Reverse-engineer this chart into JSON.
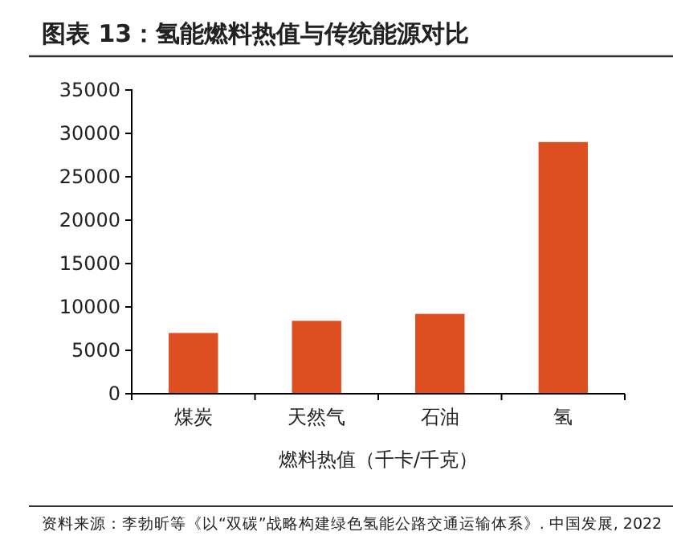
{
  "chart_data": {
    "type": "bar",
    "title": "图表 13：氢能燃料热值与传统能源对比",
    "xlabel": "燃料热值（千卡/千克）",
    "categories": [
      "煤炭",
      "天然气",
      "石油",
      "氢"
    ],
    "values": [
      7000,
      8400,
      9200,
      29000
    ],
    "color": "#dd4f21",
    "ylim": [
      0,
      35000
    ],
    "yticks": [
      0,
      5000,
      10000,
      15000,
      20000,
      25000,
      30000,
      35000
    ],
    "grid": false,
    "annotations": [
      "资料来源：李勃昕等《以“双碳”战略构建绿色氢能公路交通运输体系》. 中国发展, 2022"
    ]
  }
}
